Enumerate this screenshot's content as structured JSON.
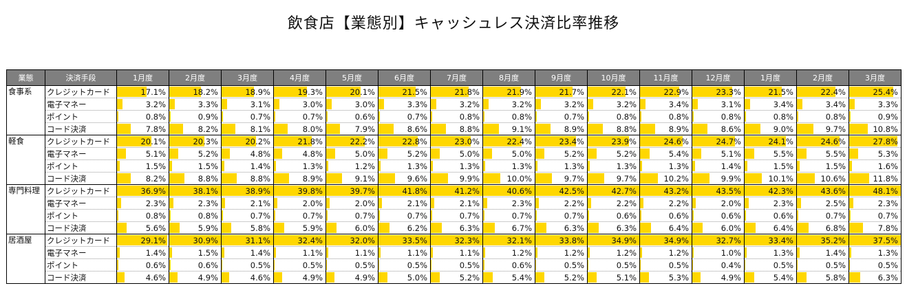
{
  "title": "飲食店【業態別】キャッシュレス決済比率推移",
  "headers": {
    "category": "業態",
    "method": "決済手段",
    "months": [
      "1月度",
      "2月度",
      "3月度",
      "4月度",
      "5月度",
      "6月度",
      "7月度",
      "8月度",
      "9月度",
      "10月度",
      "11月度",
      "12月度",
      "1月度",
      "2月度",
      "3月度"
    ]
  },
  "colors": {
    "bar": "#ffd700",
    "header_bg": "#7f7f7f"
  },
  "groups": [
    {
      "name": "食事系",
      "rows": [
        {
          "method": "クレジットカード",
          "values": [
            "17.1%",
            "18.2%",
            "18.9%",
            "19.3%",
            "20.1%",
            "21.5%",
            "21.8%",
            "21.9%",
            "21.7%",
            "22.1%",
            "22.9%",
            "23.3%",
            "21.5%",
            "22.4%",
            "25.4%"
          ]
        },
        {
          "method": "電子マネー",
          "values": [
            "3.2%",
            "3.3%",
            "3.1%",
            "3.0%",
            "3.0%",
            "3.3%",
            "3.2%",
            "3.2%",
            "3.2%",
            "3.2%",
            "3.4%",
            "3.1%",
            "3.4%",
            "3.4%",
            "3.3%"
          ]
        },
        {
          "method": "ポイント",
          "values": [
            "0.8%",
            "0.9%",
            "0.7%",
            "0.7%",
            "0.6%",
            "0.7%",
            "0.8%",
            "0.8%",
            "0.7%",
            "0.8%",
            "0.8%",
            "0.8%",
            "0.8%",
            "0.8%",
            "0.9%"
          ]
        },
        {
          "method": "コード決済",
          "values": [
            "7.8%",
            "8.2%",
            "8.1%",
            "8.0%",
            "7.9%",
            "8.6%",
            "8.8%",
            "9.1%",
            "8.9%",
            "8.8%",
            "8.9%",
            "8.6%",
            "9.0%",
            "9.7%",
            "10.8%"
          ]
        }
      ]
    },
    {
      "name": "軽食",
      "rows": [
        {
          "method": "クレジットカード",
          "values": [
            "20.1%",
            "20.3%",
            "20.2%",
            "21.8%",
            "22.2%",
            "22.8%",
            "23.0%",
            "22.4%",
            "23.4%",
            "23.9%",
            "24.6%",
            "24.7%",
            "24.1%",
            "24.6%",
            "27.8%"
          ]
        },
        {
          "method": "電子マネー",
          "values": [
            "5.1%",
            "5.2%",
            "4.8%",
            "4.8%",
            "5.0%",
            "5.2%",
            "5.0%",
            "5.0%",
            "5.2%",
            "5.2%",
            "5.4%",
            "5.1%",
            "5.5%",
            "5.5%",
            "5.3%"
          ]
        },
        {
          "method": "ポイント",
          "values": [
            "1.5%",
            "1.5%",
            "1.4%",
            "1.3%",
            "1.2%",
            "1.3%",
            "1.3%",
            "1.3%",
            "1.3%",
            "1.3%",
            "1.3%",
            "1.4%",
            "1.5%",
            "1.5%",
            "1.6%"
          ]
        },
        {
          "method": "コード決済",
          "values": [
            "8.2%",
            "8.8%",
            "8.8%",
            "8.9%",
            "9.1%",
            "9.6%",
            "9.9%",
            "10.0%",
            "9.7%",
            "9.7%",
            "10.2%",
            "9.9%",
            "10.1%",
            "10.6%",
            "11.8%"
          ]
        }
      ]
    },
    {
      "name": "専門料理",
      "rows": [
        {
          "method": "クレジットカード",
          "values": [
            "36.9%",
            "38.1%",
            "38.9%",
            "39.8%",
            "39.7%",
            "41.8%",
            "41.2%",
            "40.6%",
            "42.5%",
            "42.7%",
            "43.2%",
            "43.5%",
            "42.3%",
            "43.6%",
            "48.1%"
          ]
        },
        {
          "method": "電子マネー",
          "values": [
            "2.3%",
            "2.3%",
            "2.1%",
            "2.0%",
            "2.0%",
            "2.1%",
            "2.1%",
            "2.3%",
            "2.2%",
            "2.2%",
            "2.2%",
            "2.0%",
            "2.3%",
            "2.5%",
            "2.3%"
          ]
        },
        {
          "method": "ポイント",
          "values": [
            "0.8%",
            "0.8%",
            "0.7%",
            "0.7%",
            "0.7%",
            "0.7%",
            "0.7%",
            "0.7%",
            "0.7%",
            "0.6%",
            "0.6%",
            "0.6%",
            "0.6%",
            "0.7%",
            "0.7%"
          ]
        },
        {
          "method": "コード決済",
          "values": [
            "5.6%",
            "5.9%",
            "5.8%",
            "5.9%",
            "6.0%",
            "6.2%",
            "6.3%",
            "6.7%",
            "6.3%",
            "6.3%",
            "6.4%",
            "6.0%",
            "6.4%",
            "6.8%",
            "7.8%"
          ]
        }
      ]
    },
    {
      "name": "居酒屋",
      "rows": [
        {
          "method": "クレジットカード",
          "values": [
            "29.1%",
            "30.9%",
            "31.1%",
            "32.4%",
            "32.0%",
            "33.5%",
            "32.3%",
            "32.1%",
            "33.8%",
            "34.9%",
            "34.9%",
            "32.7%",
            "33.4%",
            "35.2%",
            "37.5%"
          ]
        },
        {
          "method": "電子マネー",
          "values": [
            "1.4%",
            "1.5%",
            "1.4%",
            "1.1%",
            "1.1%",
            "1.1%",
            "1.1%",
            "1.2%",
            "1.2%",
            "1.2%",
            "1.2%",
            "1.0%",
            "1.3%",
            "1.4%",
            "1.3%"
          ]
        },
        {
          "method": "ポイント",
          "values": [
            "0.6%",
            "0.6%",
            "0.5%",
            "0.5%",
            "0.5%",
            "0.5%",
            "0.5%",
            "0.6%",
            "0.5%",
            "0.5%",
            "0.5%",
            "0.4%",
            "0.5%",
            "0.5%",
            "0.5%"
          ]
        },
        {
          "method": "コード決済",
          "values": [
            "4.6%",
            "4.9%",
            "4.6%",
            "4.9%",
            "4.9%",
            "5.0%",
            "5.2%",
            "5.4%",
            "5.2%",
            "5.1%",
            "5.3%",
            "4.9%",
            "5.4%",
            "5.8%",
            "6.3%"
          ]
        }
      ]
    }
  ]
}
